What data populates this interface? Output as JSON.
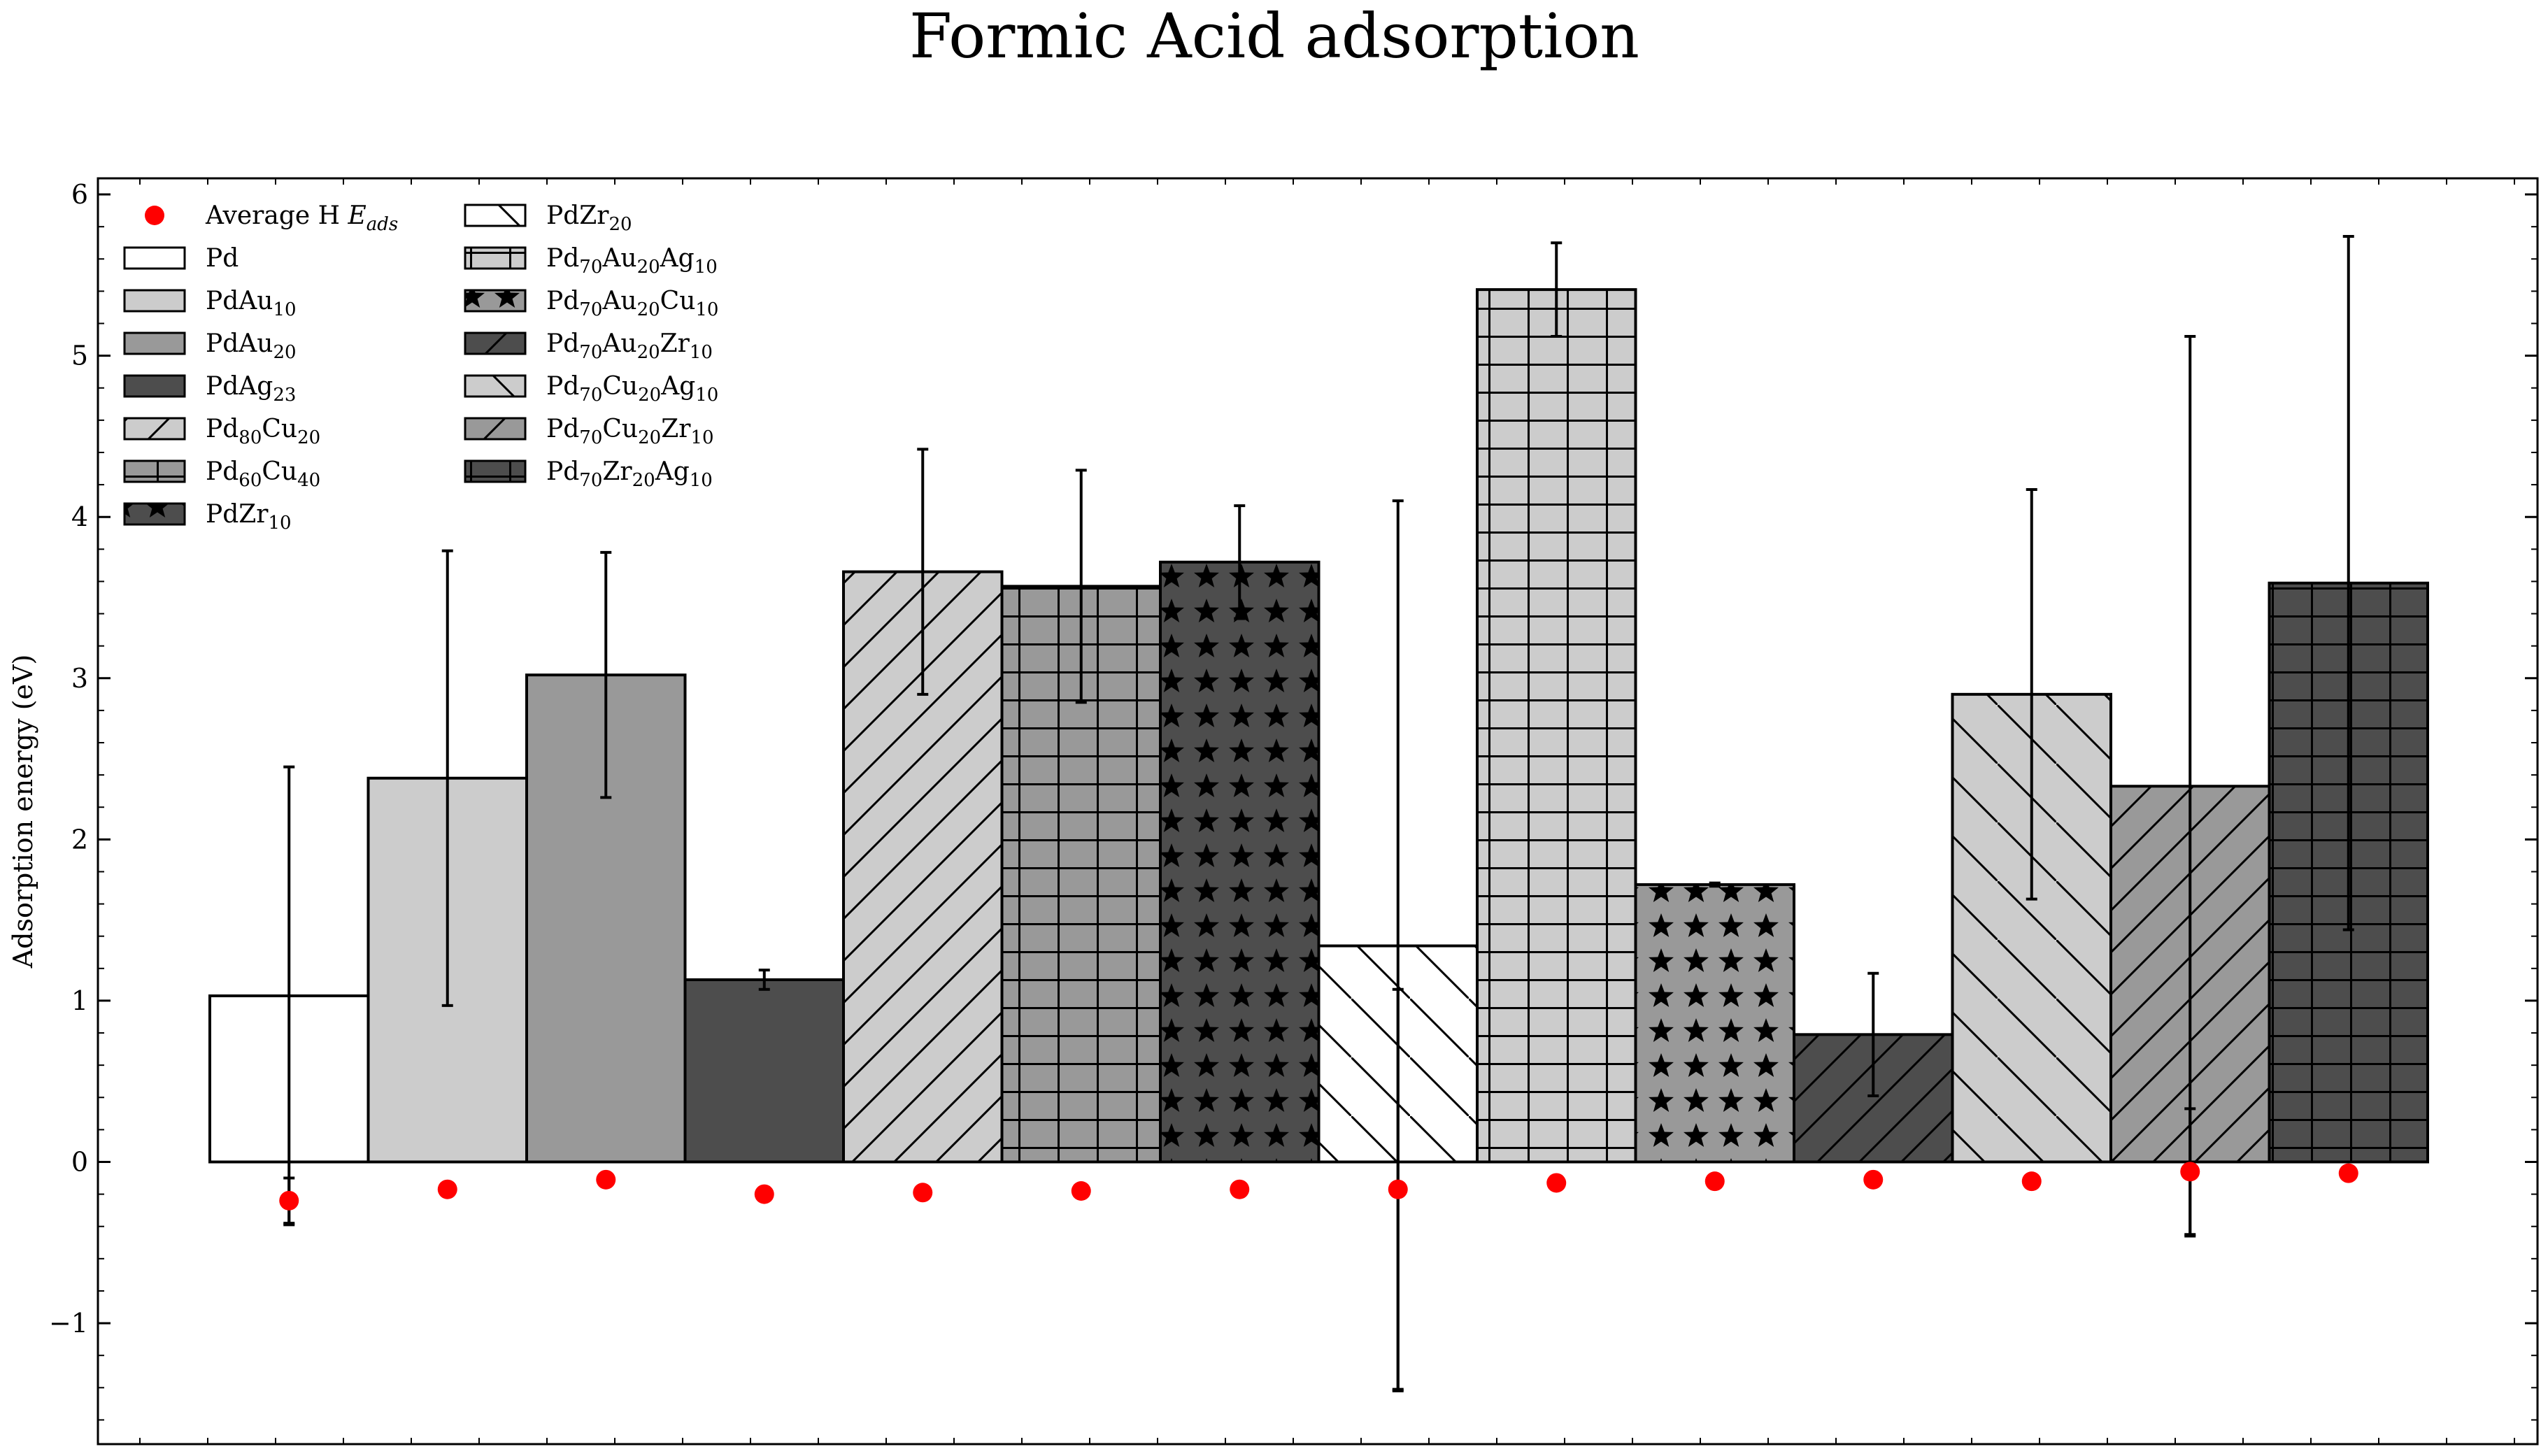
{
  "chart_data": {
    "type": "bar",
    "title": "Formic Acid adsorption",
    "xlabel": "",
    "ylabel": "Adsorption energy (eV)",
    "ylim": [
      -1.75,
      6.1
    ],
    "yticks": [
      -1,
      0,
      1,
      2,
      3,
      4,
      5,
      6
    ],
    "ytick_labels": [
      "−1",
      "0",
      "1",
      "2",
      "3",
      "4",
      "5",
      "6"
    ],
    "grid": false,
    "legend_position": "top-left",
    "series": [
      {
        "name": "formic-acid-adsorption",
        "points": [
          {
            "label_parts": [
              [
                "Pd",
                ""
              ]
            ],
            "value": 1.03,
            "err": 1.42,
            "fill": "#ffffff",
            "hatch": "none"
          },
          {
            "label_parts": [
              [
                "PdAu",
                "10"
              ]
            ],
            "value": 2.38,
            "err": 1.41,
            "fill": "#cccccc",
            "hatch": "none"
          },
          {
            "label_parts": [
              [
                "PdAu",
                "20"
              ]
            ],
            "value": 3.02,
            "err": 0.76,
            "fill": "#999999",
            "hatch": "none"
          },
          {
            "label_parts": [
              [
                "PdAg",
                "23"
              ]
            ],
            "value": 1.13,
            "err": 0.06,
            "fill": "#4d4d4d",
            "hatch": "none"
          },
          {
            "label_parts": [
              [
                "Pd",
                "80"
              ],
              [
                "Cu",
                "20"
              ]
            ],
            "value": 3.66,
            "err": 0.76,
            "fill": "#cccccc",
            "hatch": "diag"
          },
          {
            "label_parts": [
              [
                "Pd",
                "60"
              ],
              [
                "Cu",
                "40"
              ]
            ],
            "value": 3.57,
            "err": 0.72,
            "fill": "#999999",
            "hatch": "grid"
          },
          {
            "label_parts": [
              [
                "PdZr",
                "10"
              ]
            ],
            "value": 3.72,
            "err": 0.35,
            "fill": "#4d4d4d",
            "hatch": "stars"
          },
          {
            "label_parts": [
              [
                "PdZr",
                "20"
              ]
            ],
            "value": 1.34,
            "err": 2.76,
            "fill": "#ffffff",
            "hatch": "backdiag"
          },
          {
            "label_parts": [
              [
                "Pd",
                "70"
              ],
              [
                "Au",
                "20"
              ],
              [
                "Ag",
                "10"
              ]
            ],
            "value": 5.41,
            "err": 0.29,
            "fill": "#cccccc",
            "hatch": "grid"
          },
          {
            "label_parts": [
              [
                "Pd",
                "70"
              ],
              [
                "Au",
                "20"
              ],
              [
                "Cu",
                "10"
              ]
            ],
            "value": 1.72,
            "err": 0.01,
            "fill": "#999999",
            "hatch": "stars"
          },
          {
            "label_parts": [
              [
                "Pd",
                "70"
              ],
              [
                "Au",
                "20"
              ],
              [
                "Zr",
                "10"
              ]
            ],
            "value": 0.79,
            "err": 0.38,
            "fill": "#4d4d4d",
            "hatch": "diag"
          },
          {
            "label_parts": [
              [
                "Pd",
                "70"
              ],
              [
                "Cu",
                "20"
              ],
              [
                "Ag",
                "10"
              ]
            ],
            "value": 2.9,
            "err": 1.27,
            "fill": "#cccccc",
            "hatch": "backdiag"
          },
          {
            "label_parts": [
              [
                "Pd",
                "70"
              ],
              [
                "Cu",
                "20"
              ],
              [
                "Zr",
                "10"
              ]
            ],
            "value": 2.33,
            "err": 2.79,
            "fill": "#999999",
            "hatch": "diag"
          },
          {
            "label_parts": [
              [
                "Pd",
                "70"
              ],
              [
                "Zr",
                "20"
              ],
              [
                "Ag",
                "10"
              ]
            ],
            "value": 3.59,
            "err": 2.15,
            "fill": "#4d4d4d",
            "hatch": "grid"
          }
        ]
      },
      {
        "name_parts": [
          [
            "Average H ",
            ""
          ],
          [
            "E",
            ""
          ],
          [
            "",
            "ads"
          ]
        ],
        "marker_color": "#ff0000",
        "values": [
          -0.24,
          -0.17,
          -0.11,
          -0.2,
          -0.19,
          -0.18,
          -0.17,
          -0.17,
          -0.13,
          -0.12,
          -0.11,
          -0.12,
          -0.06,
          -0.07
        ],
        "errs": [
          0.14,
          0,
          0,
          0,
          0,
          0,
          0,
          1.24,
          0,
          0,
          0,
          0,
          0.39,
          0
        ]
      }
    ]
  }
}
